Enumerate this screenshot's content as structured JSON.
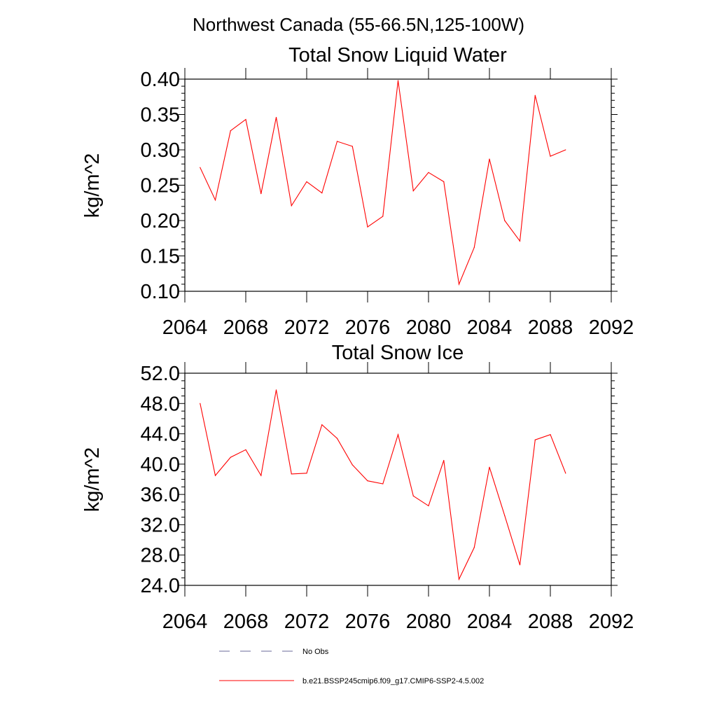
{
  "header": {
    "title": "Northwest Canada (55-66.5N,125-100W)"
  },
  "chart_data": [
    {
      "type": "line",
      "title": "Total Snow Liquid Water",
      "xlabel": "",
      "ylabel": "kg/m^2",
      "xlim": [
        2064,
        2092
      ],
      "ylim": [
        0.1,
        0.4
      ],
      "xticks": [
        "2064",
        "2068",
        "2072",
        "2076",
        "2080",
        "2084",
        "2088",
        "2092"
      ],
      "yticks": [
        "0.10",
        "0.15",
        "0.20",
        "0.25",
        "0.30",
        "0.35",
        "0.40"
      ],
      "x": [
        2065,
        2066,
        2067,
        2068,
        2069,
        2070,
        2071,
        2072,
        2073,
        2074,
        2075,
        2076,
        2077,
        2078,
        2079,
        2080,
        2081,
        2082,
        2083,
        2084,
        2085,
        2086,
        2087,
        2088,
        2089
      ],
      "series": [
        {
          "name": "b.e21.BSSP245cmip6.f09_g17.CMIP6-SSP2-4.5.002",
          "color": "#ff0000",
          "values": [
            0.275,
            0.229,
            0.327,
            0.343,
            0.238,
            0.346,
            0.221,
            0.255,
            0.239,
            0.312,
            0.305,
            0.191,
            0.206,
            0.398,
            0.242,
            0.268,
            0.255,
            0.11,
            0.162,
            0.287,
            0.2,
            0.171,
            0.377,
            0.291,
            0.3
          ]
        }
      ],
      "grid": false
    },
    {
      "type": "line",
      "title": "Total Snow Ice",
      "xlabel": "",
      "ylabel": "kg/m^2",
      "xlim": [
        2064,
        2092
      ],
      "ylim": [
        24.0,
        52.0
      ],
      "xticks": [
        "2064",
        "2068",
        "2072",
        "2076",
        "2080",
        "2084",
        "2088",
        "2092"
      ],
      "yticks": [
        "24.0",
        "28.0",
        "32.0",
        "36.0",
        "40.0",
        "44.0",
        "48.0",
        "52.0"
      ],
      "x": [
        2065,
        2066,
        2067,
        2068,
        2069,
        2070,
        2071,
        2072,
        2073,
        2074,
        2075,
        2076,
        2077,
        2078,
        2079,
        2080,
        2081,
        2082,
        2083,
        2084,
        2085,
        2086,
        2087,
        2088,
        2089
      ],
      "series": [
        {
          "name": "b.e21.BSSP245cmip6.f09_g17.CMIP6-SSP2-4.5.002",
          "color": "#ff0000",
          "values": [
            48.0,
            38.5,
            40.9,
            41.9,
            38.5,
            49.8,
            38.7,
            38.8,
            45.2,
            43.4,
            39.9,
            37.8,
            37.4,
            43.9,
            35.8,
            34.5,
            40.5,
            24.8,
            29.0,
            39.6,
            33.2,
            26.7,
            43.2,
            43.9,
            38.8
          ]
        }
      ],
      "grid": false
    }
  ],
  "legend": {
    "items": [
      {
        "label": "No Obs",
        "style": "dashed",
        "color": "#6b6b9a"
      },
      {
        "label": "b.e21.BSSP245cmip6.f09_g17.CMIP6-SSP2-4.5.002",
        "style": "solid",
        "color": "#ff0000"
      }
    ]
  }
}
